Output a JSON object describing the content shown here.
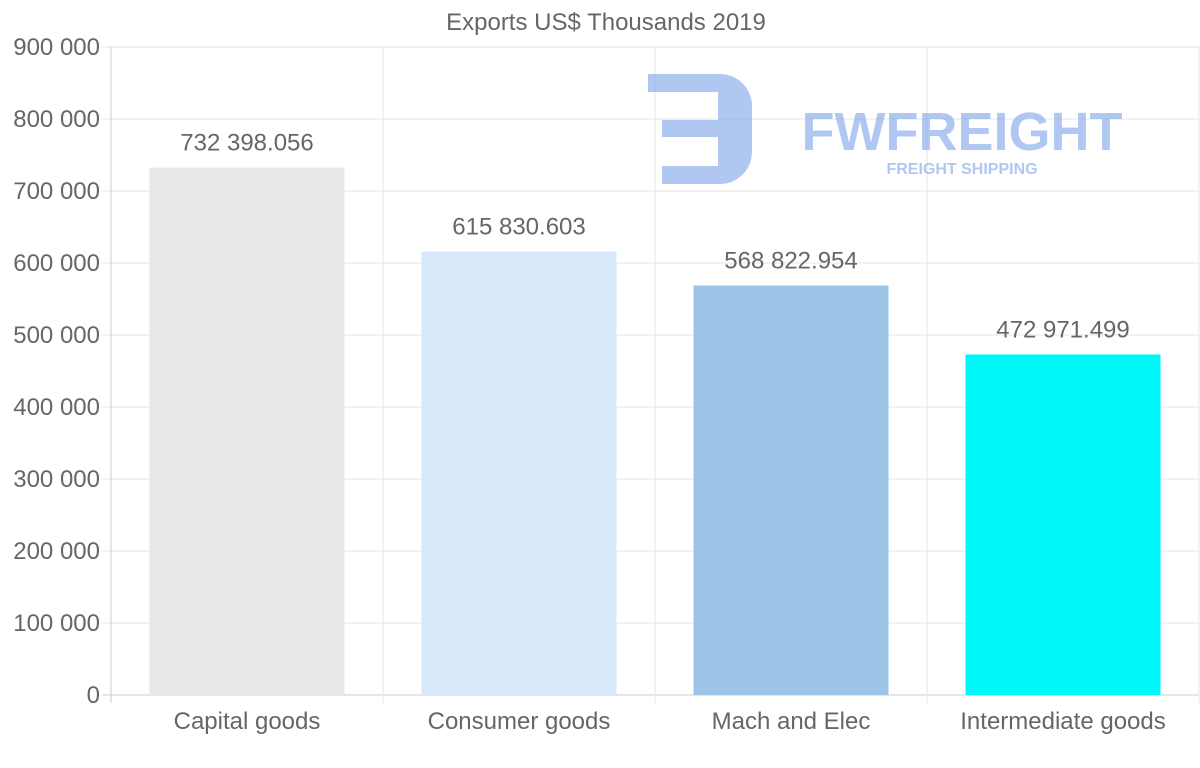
{
  "chart_data": {
    "type": "bar",
    "title": "Exports US$ Thousands 2019",
    "categories": [
      "Capital goods",
      "Consumer goods",
      "Mach and Elec",
      "Intermediate goods"
    ],
    "values": [
      732398.056,
      615830.603,
      568822.954,
      472971.499
    ],
    "value_labels": [
      "732 398.056",
      "615 830.603",
      "568 822.954",
      "472 971.499"
    ],
    "bar_colors": [
      "#e8e8e8",
      "#d6e8f9",
      "#9dc3e6",
      "#00f7f7"
    ],
    "ylim": [
      0,
      900000
    ],
    "yticks": [
      0,
      100000,
      200000,
      300000,
      400000,
      500000,
      600000,
      700000,
      800000,
      900000
    ],
    "ytick_labels": [
      "0",
      "100 000",
      "200 000",
      "300 000",
      "400 000",
      "500 000",
      "600 000",
      "700 000",
      "800 000",
      "900 000"
    ],
    "xlabel": "",
    "ylabel": "",
    "grid": true
  },
  "watermark": {
    "brand": "FWFREIGHT",
    "tagline": "FREIGHT SHIPPING",
    "color": "#6f9ae6"
  }
}
